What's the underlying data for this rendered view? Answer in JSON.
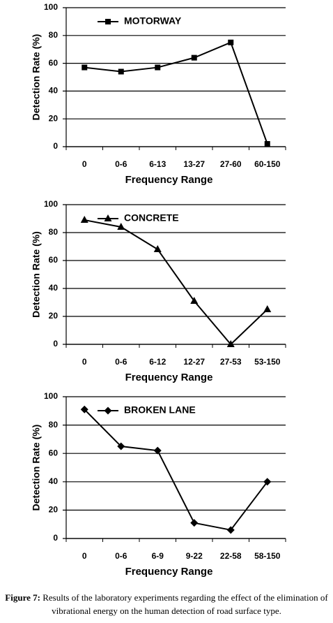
{
  "chart_data": [
    {
      "type": "line",
      "xlabel": "Frequency Range",
      "ylabel": "Detection Rate (%)",
      "categories": [
        "0",
        "0-6",
        "6-13",
        "13-27",
        "27-60",
        "60-150"
      ],
      "series": [
        {
          "name": "MOTORWAY",
          "color": "#000000",
          "marker": "square",
          "values": [
            57,
            54,
            57,
            64,
            75,
            2
          ]
        }
      ],
      "ylim": [
        0,
        100
      ],
      "yticks": [
        0,
        20,
        40,
        60,
        80,
        100
      ],
      "grid": true,
      "legend": "upper left"
    },
    {
      "type": "line",
      "xlabel": "Frequency Range",
      "ylabel": "Detection Rate (%)",
      "categories": [
        "0",
        "0-6",
        "6-12",
        "12-27",
        "27-53",
        "53-150"
      ],
      "series": [
        {
          "name": "CONCRETE",
          "color": "#000000",
          "marker": "triangle",
          "values": [
            89,
            84,
            68,
            31,
            0,
            25
          ]
        }
      ],
      "ylim": [
        0,
        100
      ],
      "yticks": [
        0,
        20,
        40,
        60,
        80,
        100
      ],
      "grid": true,
      "legend": "upper left"
    },
    {
      "type": "line",
      "xlabel": "Frequency Range",
      "ylabel": "Detection Rate (%)",
      "categories": [
        "0",
        "0-6",
        "6-9",
        "9-22",
        "22-58",
        "58-150"
      ],
      "series": [
        {
          "name": "BROKEN LANE",
          "color": "#000000",
          "marker": "diamond",
          "values": [
            91,
            65,
            62,
            11,
            6,
            40
          ]
        }
      ],
      "ylim": [
        0,
        100
      ],
      "yticks": [
        0,
        20,
        40,
        60,
        80,
        100
      ],
      "grid": true,
      "legend": "upper left"
    }
  ],
  "caption": {
    "label": "Figure 7:",
    "text": "Results of the laboratory experiments regarding the effect of the elimination of vibrational energy on the human detection of road surface type."
  }
}
